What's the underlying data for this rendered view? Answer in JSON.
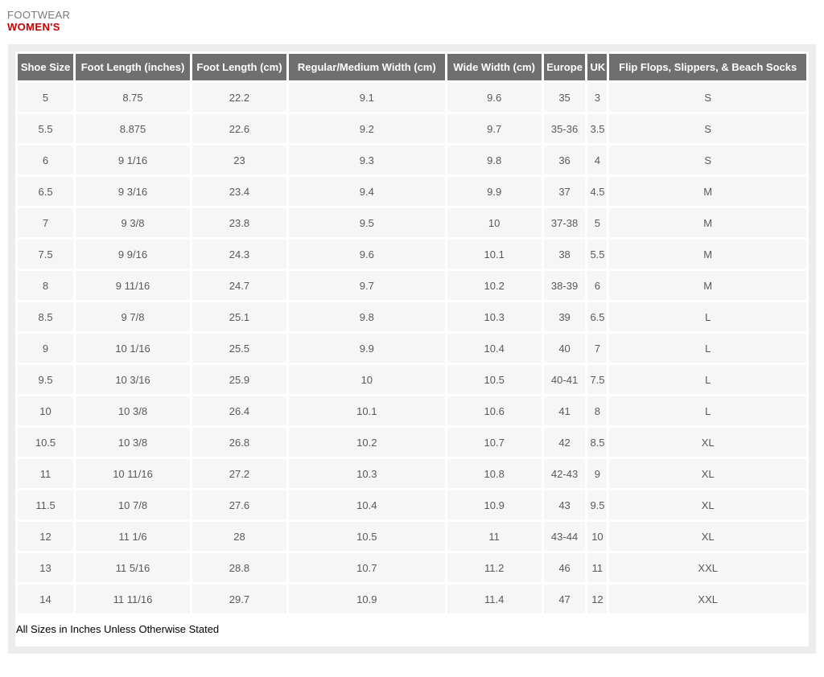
{
  "page_header": {
    "category": "FOOTWEAR",
    "title": "WOMEN'S"
  },
  "size_chart": {
    "columns": [
      "Shoe Size",
      "Foot Length (inches)",
      "Foot Length (cm)",
      "Regular/Medium Width (cm)",
      "Wide Width (cm)",
      "Europe",
      "UK",
      "Flip Flops, Slippers, & Beach Socks"
    ],
    "rows": [
      [
        "5",
        "8.75",
        "22.2",
        "9.1",
        "9.6",
        "35",
        "3",
        "S"
      ],
      [
        "5.5",
        "8.875",
        "22.6",
        "9.2",
        "9.7",
        "35-36",
        "3.5",
        "S"
      ],
      [
        "6",
        "9 1/16",
        "23",
        "9.3",
        "9.8",
        "36",
        "4",
        "S"
      ],
      [
        "6.5",
        "9 3/16",
        "23.4",
        "9.4",
        "9.9",
        "37",
        "4.5",
        "M"
      ],
      [
        "7",
        "9 3/8",
        "23.8",
        "9.5",
        "10",
        "37-38",
        "5",
        "M"
      ],
      [
        "7.5",
        "9 9/16",
        "24.3",
        "9.6",
        "10.1",
        "38",
        "5.5",
        "M"
      ],
      [
        "8",
        "9 11/16",
        "24.7",
        "9.7",
        "10.2",
        "38-39",
        "6",
        "M"
      ],
      [
        "8.5",
        "9 7/8",
        "25.1",
        "9.8",
        "10.3",
        "39",
        "6.5",
        "L"
      ],
      [
        "9",
        "10 1/16",
        "25.5",
        "9.9",
        "10.4",
        "40",
        "7",
        "L"
      ],
      [
        "9.5",
        "10 3/16",
        "25.9",
        "10",
        "10.5",
        "40-41",
        "7.5",
        "L"
      ],
      [
        "10",
        "10 3/8",
        "26.4",
        "10.1",
        "10.6",
        "41",
        "8",
        "L"
      ],
      [
        "10.5",
        "10 3/8",
        "26.8",
        "10.2",
        "10.7",
        "42",
        "8.5",
        "XL"
      ],
      [
        "11",
        "10 11/16",
        "27.2",
        "10.3",
        "10.8",
        "42-43",
        "9",
        "XL"
      ],
      [
        "11.5",
        "10 7/8",
        "27.6",
        "10.4",
        "10.9",
        "43",
        "9.5",
        "XL"
      ],
      [
        "12",
        "11 1/6",
        "28",
        "10.5",
        "11",
        "43-44",
        "10",
        "XL"
      ],
      [
        "13",
        "11 5/16",
        "28.8",
        "10.7",
        "11.2",
        "46",
        "11",
        "XXL"
      ],
      [
        "14",
        "11 11/16",
        "29.7",
        "10.9",
        "11.4",
        "47",
        "12",
        "XXL"
      ]
    ]
  },
  "footer_note": "All Sizes in Inches Unless Otherwise Stated",
  "colors": {
    "accent_red": "#cc0001",
    "category_gray": "#77787b",
    "table_header_bg": "#6f6f6f",
    "table_header_text": "#ffffff",
    "row_bg": "#f6f6f6",
    "cell_text": "#58595b",
    "panel_border": "#ececec"
  }
}
